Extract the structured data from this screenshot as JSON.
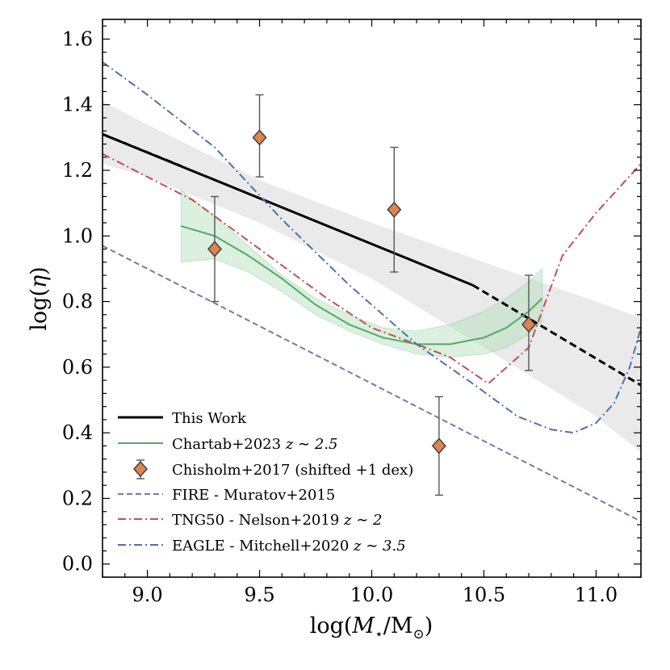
{
  "chart_data": {
    "type": "line",
    "xlabel": "log(M⋆/M⊙)",
    "ylabel": "log(η)",
    "xlim": [
      8.8,
      11.2
    ],
    "ylim": [
      -0.04,
      1.66
    ],
    "xticks": [
      9.0,
      9.5,
      10.0,
      10.5,
      11.0
    ],
    "xtick_labels": [
      "9.0",
      "9.5",
      "10.0",
      "10.5",
      "11.0"
    ],
    "yticks": [
      0.0,
      0.2,
      0.4,
      0.6,
      0.8,
      1.0,
      1.2,
      1.4,
      1.6
    ],
    "ytick_labels": [
      "0.0",
      "0.2",
      "0.4",
      "0.6",
      "0.8",
      "1.0",
      "1.2",
      "1.4",
      "1.6"
    ],
    "legend_position": "lower-left",
    "series": [
      {
        "name": "This Work",
        "legend": "This Work",
        "style": "solid",
        "color": "#000000",
        "x": [
          8.8,
          10.45
        ],
        "y": [
          1.31,
          0.85
        ],
        "extrapolated": {
          "style": "dashed",
          "x": [
            [
              8.8,
              9.15
            ],
            [
              10.45,
              11.2
            ]
          ],
          "y": [
            [
              1.31,
              1.213
            ],
            [
              0.85,
              0.545
            ]
          ]
        },
        "band": {
          "color": "#bdbdbd",
          "x": [
            8.8,
            9.0,
            9.5,
            10.0,
            10.5,
            11.0,
            11.2
          ],
          "upper": [
            1.41,
            1.34,
            1.17,
            1.04,
            0.92,
            0.8,
            0.75
          ],
          "lower": [
            1.22,
            1.18,
            1.04,
            0.87,
            0.66,
            0.45,
            0.34
          ]
        }
      },
      {
        "name": "Chartab+2023",
        "legend": "Chartab+2023",
        "legend_z": "z ∼ 2.5",
        "style": "solid",
        "color": "#55a868",
        "x": [
          9.15,
          9.3,
          9.45,
          9.6,
          9.75,
          9.9,
          10.05,
          10.2,
          10.35,
          10.5,
          10.6,
          10.7,
          10.76
        ],
        "y": [
          1.03,
          1.0,
          0.94,
          0.87,
          0.79,
          0.73,
          0.69,
          0.67,
          0.67,
          0.69,
          0.72,
          0.77,
          0.81
        ],
        "band": {
          "color": "#a9dbb0",
          "x": [
            9.15,
            9.3,
            9.45,
            9.6,
            9.75,
            9.9,
            10.05,
            10.2,
            10.35,
            10.5,
            10.6,
            10.7,
            10.76
          ],
          "upper": [
            1.14,
            1.06,
            0.97,
            0.88,
            0.81,
            0.76,
            0.72,
            0.71,
            0.73,
            0.77,
            0.81,
            0.86,
            0.9
          ],
          "lower": [
            0.92,
            0.93,
            0.89,
            0.83,
            0.76,
            0.71,
            0.67,
            0.64,
            0.63,
            0.64,
            0.66,
            0.7,
            0.74
          ]
        }
      },
      {
        "name": "Chisholm+2017 (shifted +1 dex)",
        "legend": "Chisholm+2017 (shifted +1 dex)",
        "style": "markers",
        "color": "#dd8452",
        "x": [
          9.3,
          9.5,
          10.1,
          10.3,
          10.7
        ],
        "y": [
          0.96,
          1.3,
          1.08,
          0.36,
          0.73
        ],
        "yerr_low": [
          0.8,
          1.18,
          0.89,
          0.21,
          0.59
        ],
        "yerr_high": [
          1.12,
          1.43,
          1.27,
          0.51,
          0.88
        ]
      },
      {
        "name": "FIRE - Muratov+2015",
        "legend": "FIRE - Muratov+2015",
        "style": "dashed",
        "color": "#8172b3",
        "x": [
          8.8,
          11.2
        ],
        "y": [
          0.97,
          0.13
        ]
      },
      {
        "name": "TNG50 - Nelson+2019",
        "legend": "TNG50 - Nelson+2019",
        "legend_z": "z ∼ 2",
        "style": "dashdot",
        "color": "#c44e52",
        "x": [
          8.8,
          9.0,
          9.2,
          9.4,
          9.6,
          9.8,
          10.0,
          10.2,
          10.35,
          10.52,
          10.7,
          10.85,
          11.0,
          11.2
        ],
        "y": [
          1.25,
          1.18,
          1.11,
          1.01,
          0.91,
          0.81,
          0.72,
          0.67,
          0.63,
          0.55,
          0.66,
          0.94,
          1.07,
          1.22
        ]
      },
      {
        "name": "EAGLE - Mitchell+2020",
        "legend": "EAGLE - Mitchell+2020",
        "legend_z": "z ∼ 3.5",
        "style": "dashdot",
        "color": "#4c72b0",
        "x": [
          8.8,
          9.0,
          9.3,
          9.6,
          9.9,
          10.2,
          10.45,
          10.65,
          10.8,
          10.9,
          11.0,
          11.08,
          11.15,
          11.2
        ],
        "y": [
          1.53,
          1.43,
          1.27,
          1.05,
          0.85,
          0.67,
          0.55,
          0.45,
          0.41,
          0.4,
          0.43,
          0.49,
          0.6,
          0.72
        ]
      }
    ]
  }
}
